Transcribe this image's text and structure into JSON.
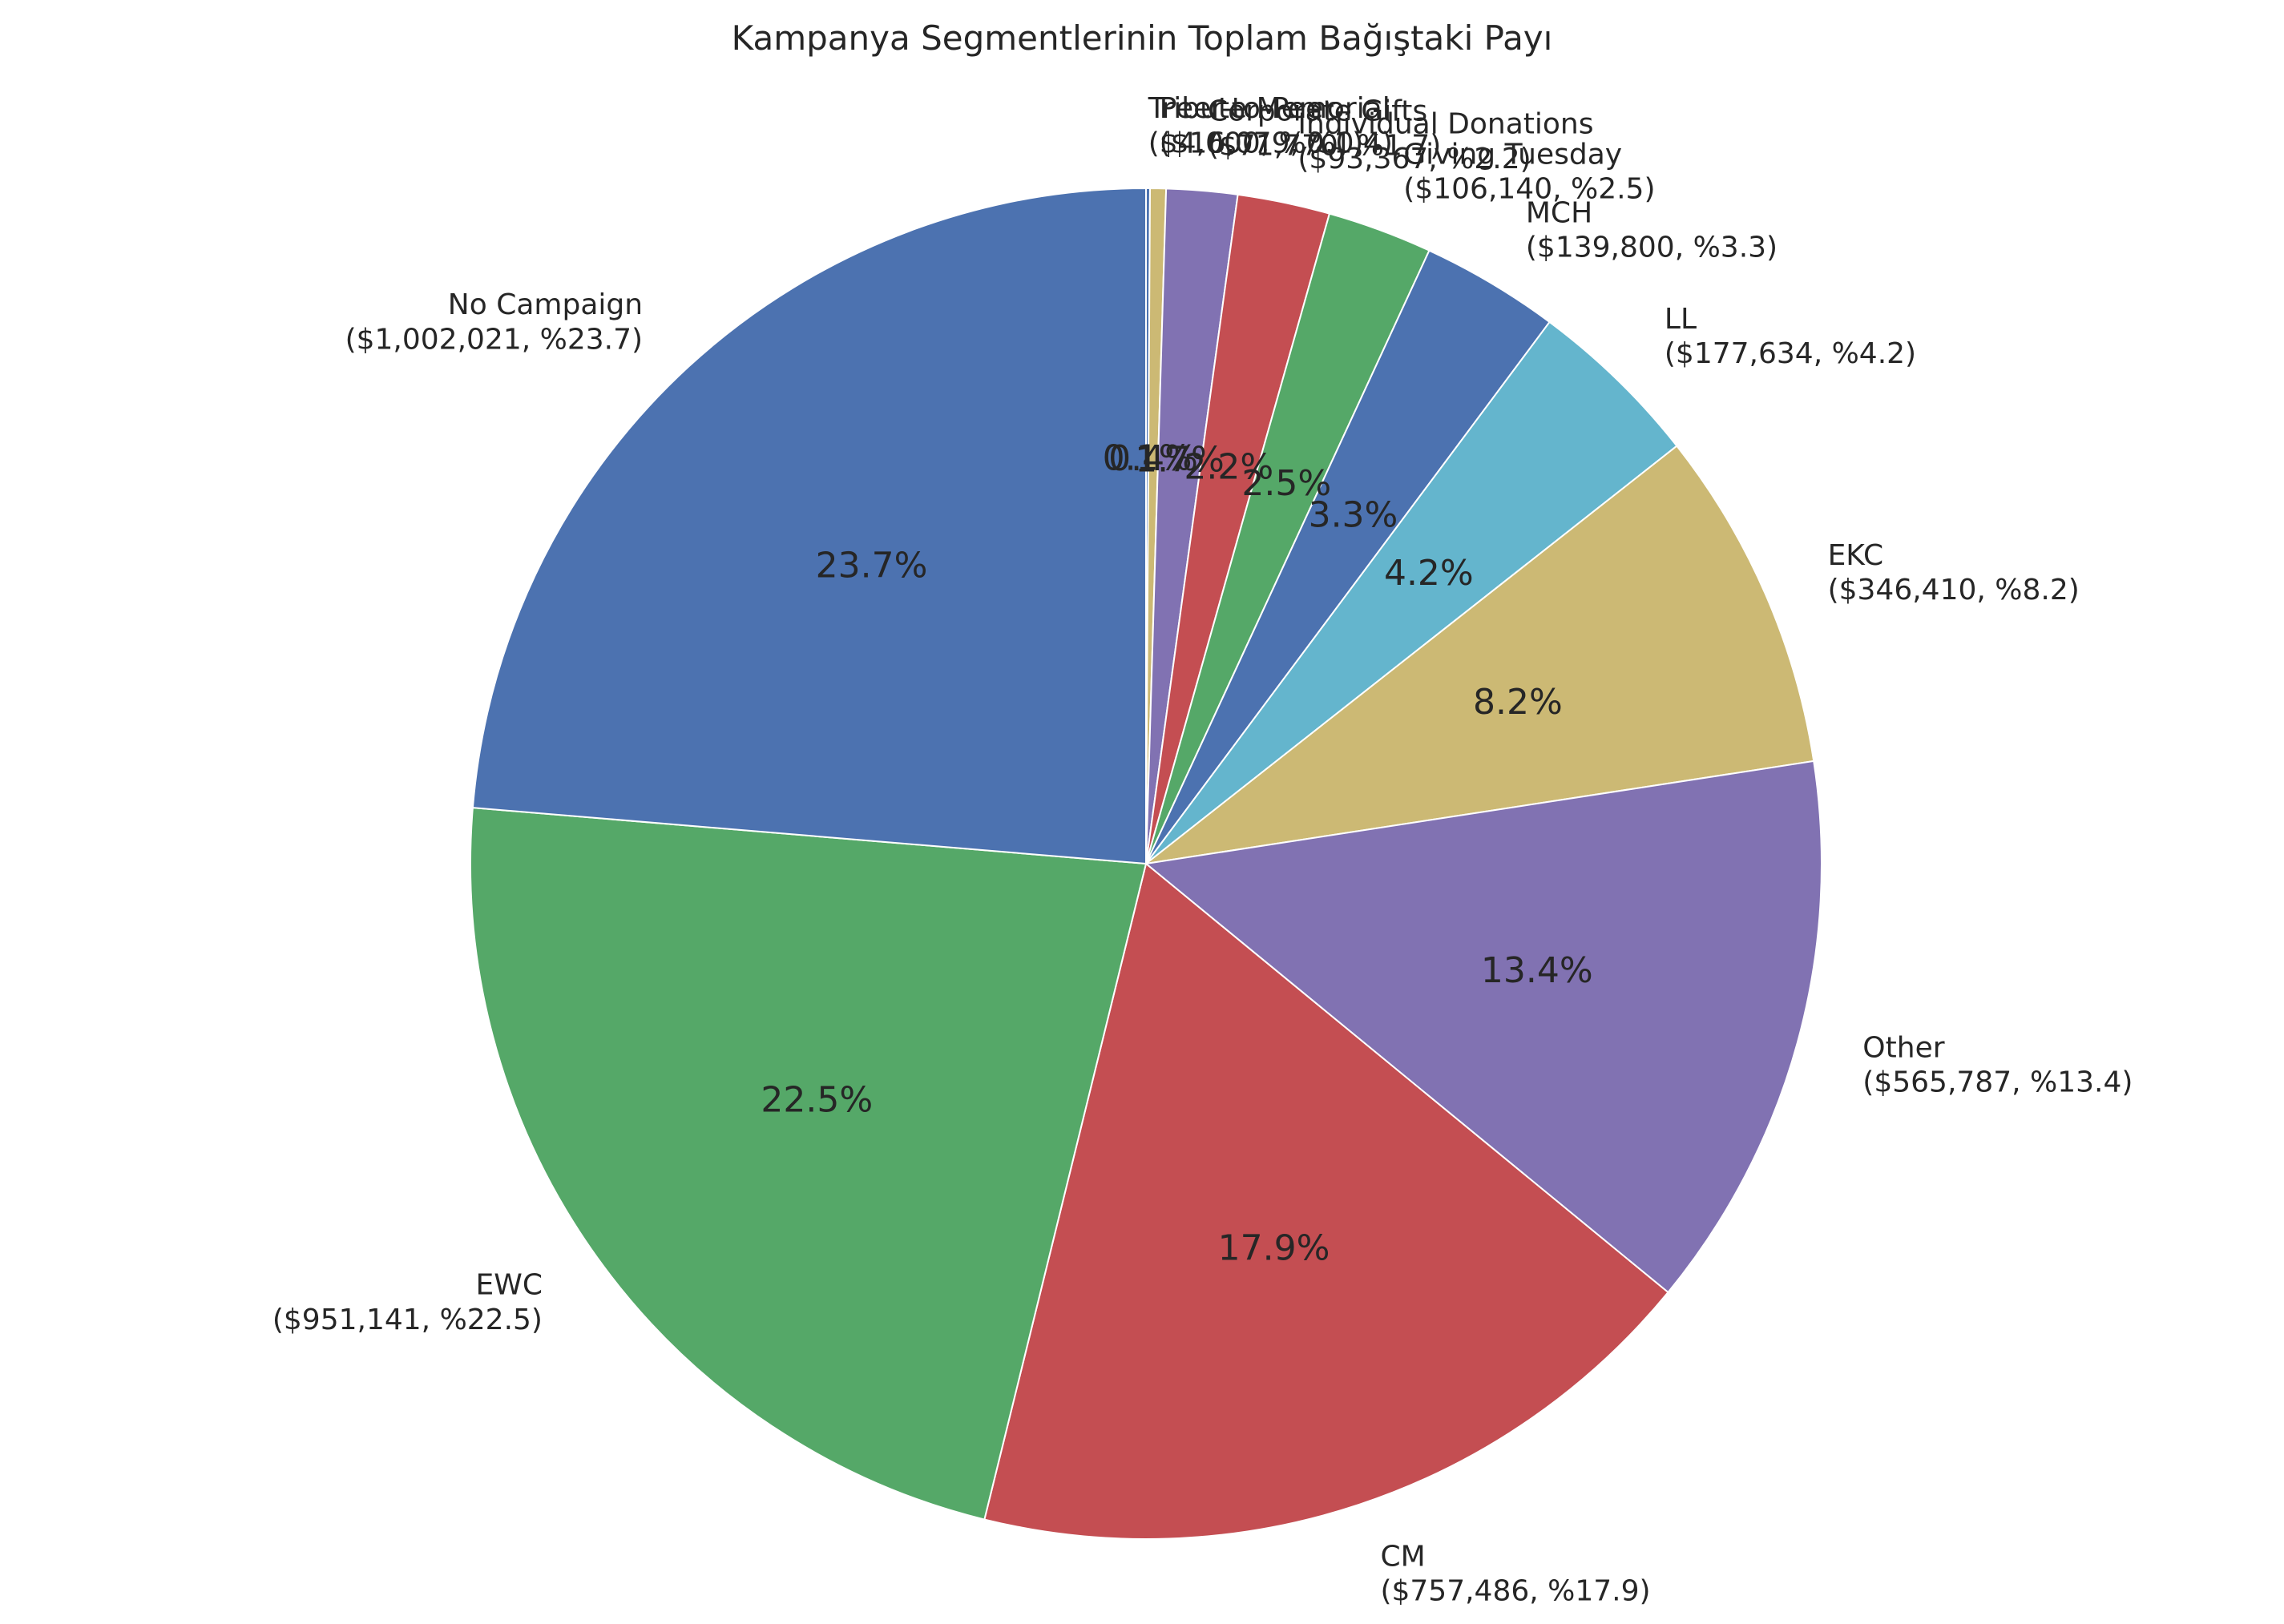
{
  "chart_data": {
    "type": "pie",
    "title": "Kampanya Segmentlerinin Toplam Bağıştaki Payı",
    "start_angle_deg": 90,
    "direction": "clockwise",
    "slices": [
      {
        "label": "Tribute Memorial",
        "value": 4000,
        "pct_label": "0.1%",
        "outer_label": "($4,000, %0.1)",
        "color": "#4c72b0"
      },
      {
        "label": "Peer-to-Peer",
        "value": 16079,
        "pct_label": "0.4%",
        "outer_label": "($16,079, %0.4)",
        "color": "#ccb974"
      },
      {
        "label": "Corporate Gifts",
        "value": 71770,
        "pct_label": "1.7%",
        "outer_label": "($71,770, %1.7)",
        "color": "#8172b2"
      },
      {
        "label": "Individual Donations",
        "value": 93367,
        "pct_label": "2.2%",
        "outer_label": "($93,367, %2.2)",
        "color": "#c44e52"
      },
      {
        "label": "Giving Tuesday",
        "value": 106140,
        "pct_label": "2.5%",
        "outer_label": "($106,140, %2.5)",
        "color": "#55a868"
      },
      {
        "label": "MCH",
        "value": 139800,
        "pct_label": "3.3%",
        "outer_label": "($139,800, %3.3)",
        "color": "#4c72b0"
      },
      {
        "label": "LL",
        "value": 177634,
        "pct_label": "4.2%",
        "outer_label": "($177,634, %4.2)",
        "color": "#64b5cd"
      },
      {
        "label": "EKC",
        "value": 346410,
        "pct_label": "8.2%",
        "outer_label": "($346,410, %8.2)",
        "color": "#ccb974"
      },
      {
        "label": "Other",
        "value": 565787,
        "pct_label": "13.4%",
        "outer_label": "($565,787, %13.4)",
        "color": "#8172b2"
      },
      {
        "label": "CM",
        "value": 757486,
        "pct_label": "17.9%",
        "outer_label": "($757,486, %17.9)",
        "color": "#c44e52"
      },
      {
        "label": "EWC",
        "value": 951141,
        "pct_label": "22.5%",
        "outer_label": "($951,141, %22.5)",
        "color": "#55a868"
      },
      {
        "label": "No Campaign",
        "value": 1002021,
        "pct_label": "23.7%",
        "outer_label": "($1,002,021, %23.7)",
        "color": "#4c72b0"
      }
    ]
  }
}
